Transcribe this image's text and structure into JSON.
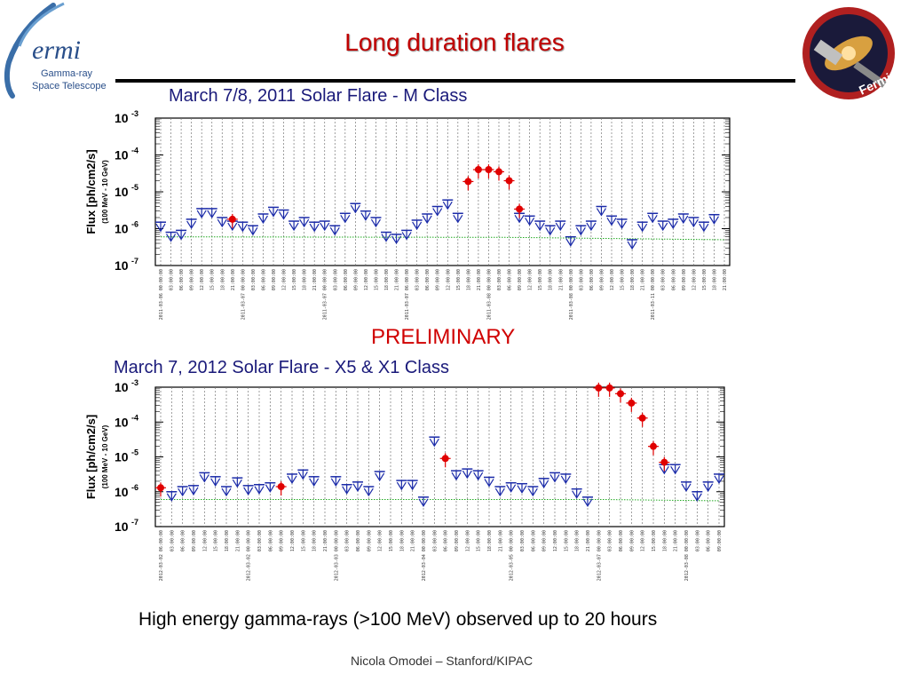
{
  "header": {
    "title": "Long duration flares",
    "logo_left_text": [
      "ermi",
      "Gamma-ray",
      "Space Telescope"
    ],
    "logo_right_text": "Fermi"
  },
  "charts_meta": {
    "preliminary": "PRELIMINARY",
    "footer": "High energy gamma-rays (>100 MeV) observed up to 20 hours",
    "author": "Nicola Omodei – Stanford/KIPAC"
  },
  "colors": {
    "title": "#c00000",
    "upper_limit": "#1a2aa8",
    "detection": "#e00000",
    "threshold": "#22aa22"
  },
  "chart_data": [
    {
      "type": "scatter",
      "title": "March 7/8, 2011 Solar Flare - M Class",
      "ylabel": "Flux [ph/cm2/s]",
      "ylabel_sub": "(100 MeV - 10 GeV)",
      "yscale": "log",
      "ylim": [
        1e-07,
        0.001
      ],
      "ytick_labels": [
        "10-3",
        "10-4",
        "10-5",
        "10-6",
        "10-7"
      ],
      "grid": "vertical dotted",
      "x_tick_labels": [
        "2011-03-06 00:00:00",
        "03:00:00",
        "06:00:00",
        "09:00:00",
        "12:00:00",
        "15:00:00",
        "18:00:00",
        "21:00:00",
        "2011-03-07 00:00:00",
        "03:00:00",
        "06:00:00",
        "09:00:00",
        "12:00:00",
        "15:00:00",
        "18:00:00",
        "21:00:00",
        "2011-03-07 00:00:00",
        "03:00:00",
        "06:00:00",
        "09:00:00",
        "12:00:00",
        "15:00:00",
        "18:00:00",
        "21:00:00",
        "2011-03-07 06:00:00",
        "03:00:00",
        "06:00:00",
        "09:00:00",
        "12:00:00",
        "15:00:00",
        "18:00:00",
        "21:00:00",
        "2011-03-08 00:00:00",
        "03:00:00",
        "06:00:00",
        "09:00:00",
        "12:00:00",
        "15:00:00",
        "18:00:00",
        "21:00:00",
        "2011-03-08 00:00:00",
        "03:00:00",
        "06:00:00",
        "09:00:00",
        "12:00:00",
        "15:00:00",
        "18:00:00",
        "21:00:00",
        "2011-03-11 00:00:00",
        "03:00:00",
        "06:00:00",
        "09:00:00",
        "12:00:00",
        "15:00:00",
        "18:00:00",
        "21:00:00"
      ],
      "upper_limits": [
        [
          0,
          1.5e-06
        ],
        [
          1,
          8e-07
        ],
        [
          2,
          9e-07
        ],
        [
          3,
          1.8e-06
        ],
        [
          4,
          3.5e-06
        ],
        [
          5,
          3.5e-06
        ],
        [
          6,
          2e-06
        ],
        [
          7,
          1.6e-06
        ],
        [
          8,
          1.5e-06
        ],
        [
          9,
          1.2e-06
        ],
        [
          10,
          2.5e-06
        ],
        [
          11,
          3.8e-06
        ],
        [
          12,
          3.2e-06
        ],
        [
          13,
          1.6e-06
        ],
        [
          14,
          2e-06
        ],
        [
          15,
          1.5e-06
        ],
        [
          16,
          1.6e-06
        ],
        [
          17,
          1.2e-06
        ],
        [
          18,
          2.6e-06
        ],
        [
          19,
          4.8e-06
        ],
        [
          20,
          3e-06
        ],
        [
          21,
          2e-06
        ],
        [
          22,
          8e-07
        ],
        [
          23,
          7e-07
        ],
        [
          24,
          9e-07
        ],
        [
          25,
          1.7e-06
        ],
        [
          26,
          2.5e-06
        ],
        [
          27,
          4e-06
        ],
        [
          28,
          6e-06
        ],
        [
          29,
          2.6e-06
        ],
        [
          35,
          2.6e-06
        ],
        [
          36,
          2.2e-06
        ],
        [
          37,
          1.6e-06
        ],
        [
          38,
          1.2e-06
        ],
        [
          39,
          1.6e-06
        ],
        [
          40,
          6e-07
        ],
        [
          41,
          1.2e-06
        ],
        [
          42,
          1.6e-06
        ],
        [
          43,
          4e-06
        ],
        [
          44,
          2.2e-06
        ],
        [
          45,
          1.8e-06
        ],
        [
          46,
          5e-07
        ],
        [
          47,
          1.5e-06
        ],
        [
          48,
          2.6e-06
        ],
        [
          49,
          1.6e-06
        ],
        [
          50,
          1.8e-06
        ],
        [
          51,
          2.5e-06
        ],
        [
          52,
          2e-06
        ],
        [
          53,
          1.5e-06
        ],
        [
          54,
          2.4e-06
        ]
      ],
      "detections": [
        [
          7,
          1.8e-06
        ],
        [
          30,
          1.9e-05
        ],
        [
          31,
          4e-05
        ],
        [
          32,
          4e-05
        ],
        [
          33,
          3.5e-05
        ],
        [
          34,
          2e-05
        ],
        [
          35,
          3.4e-06
        ]
      ],
      "threshold": [
        [
          0,
          6e-07
        ],
        [
          34,
          5.8e-07
        ],
        [
          55,
          5e-07
        ]
      ],
      "xmax": 55
    },
    {
      "type": "scatter",
      "title": "March 7, 2012 Solar Flare - X5 & X1 Class",
      "ylabel": "Flux [ph/cm2/s]",
      "ylabel_sub": "(100 MeV - 10 GeV)",
      "yscale": "log",
      "ylim": [
        1e-07,
        0.001
      ],
      "ytick_labels": [
        "10-3",
        "10-4",
        "10-5",
        "10-6",
        "10-7"
      ],
      "grid": "vertical dotted",
      "x_tick_labels": [
        "2012-03-02 06:00:00",
        "03:00:00",
        "06:00:00",
        "09:00:00",
        "12:00:00",
        "15:00:00",
        "18:00:00",
        "21:00:00",
        "2012-03-02 00:00:00",
        "03:00:00",
        "06:00:00",
        "09:00:00",
        "12:00:00",
        "15:00:00",
        "18:00:00",
        "21:00:00",
        "2012-03-03 00:00:00",
        "03:00:00",
        "06:00:00",
        "09:00:00",
        "12:00:00",
        "15:00:00",
        "18:00:00",
        "21:00:00",
        "2012-03-04 00:00:00",
        "03:00:00",
        "06:00:00",
        "09:00:00",
        "12:00:00",
        "15:00:00",
        "18:00:00",
        "21:00:00",
        "2012-03-05 00:00:00",
        "03:00:00",
        "06:00:00",
        "09:00:00",
        "12:00:00",
        "15:00:00",
        "18:00:00",
        "21:00:00",
        "2012-03-07 00:00:00",
        "03:00:00",
        "06:00:00",
        "09:00:00",
        "12:00:00",
        "15:00:00",
        "18:00:00",
        "21:00:00",
        "2012-03-08 00:00:00",
        "03:00:00",
        "06:00:00",
        "09:00:00"
      ],
      "upper_limits": [
        [
          1,
          1e-06
        ],
        [
          2,
          1.4e-06
        ],
        [
          3,
          1.5e-06
        ],
        [
          4,
          3.5e-06
        ],
        [
          5,
          2.7e-06
        ],
        [
          6,
          1.4e-06
        ],
        [
          7,
          2.5e-06
        ],
        [
          8,
          1.5e-06
        ],
        [
          9,
          1.6e-06
        ],
        [
          10,
          1.8e-06
        ],
        [
          12,
          3.2e-06
        ],
        [
          13,
          4.2e-06
        ],
        [
          14,
          2.7e-06
        ],
        [
          16,
          2.7e-06
        ],
        [
          17,
          1.6e-06
        ],
        [
          18,
          1.9e-06
        ],
        [
          19,
          1.4e-06
        ],
        [
          20,
          3.8e-06
        ],
        [
          22,
          2.1e-06
        ],
        [
          23,
          2.1e-06
        ],
        [
          24,
          7e-07
        ],
        [
          25,
          3.7e-05
        ],
        [
          27,
          4e-06
        ],
        [
          28,
          4.5e-06
        ],
        [
          29,
          4e-06
        ],
        [
          30,
          2.6e-06
        ],
        [
          31,
          1.4e-06
        ],
        [
          32,
          1.8e-06
        ],
        [
          33,
          1.7e-06
        ],
        [
          34,
          1.4e-06
        ],
        [
          35,
          2.4e-06
        ],
        [
          36,
          3.5e-06
        ],
        [
          37,
          3.2e-06
        ],
        [
          38,
          1.2e-06
        ],
        [
          39,
          7e-07
        ],
        [
          46,
          6e-06
        ],
        [
          47,
          6e-06
        ],
        [
          48,
          1.9e-06
        ],
        [
          49,
          1e-06
        ],
        [
          50,
          1.9e-06
        ],
        [
          51,
          3.2e-06
        ]
      ],
      "detections": [
        [
          0,
          1.3e-06
        ],
        [
          11,
          1.4e-06
        ],
        [
          26,
          9e-06
        ],
        [
          40,
          0.00095
        ],
        [
          41,
          0.00095
        ],
        [
          42,
          0.00065
        ],
        [
          43,
          0.00035
        ],
        [
          44,
          0.00013
        ],
        [
          45,
          2e-05
        ],
        [
          46,
          7e-06
        ]
      ],
      "threshold": [
        [
          0,
          6e-07
        ],
        [
          40,
          6e-07
        ],
        [
          51,
          5.5e-07
        ]
      ],
      "xmax": 51
    }
  ]
}
